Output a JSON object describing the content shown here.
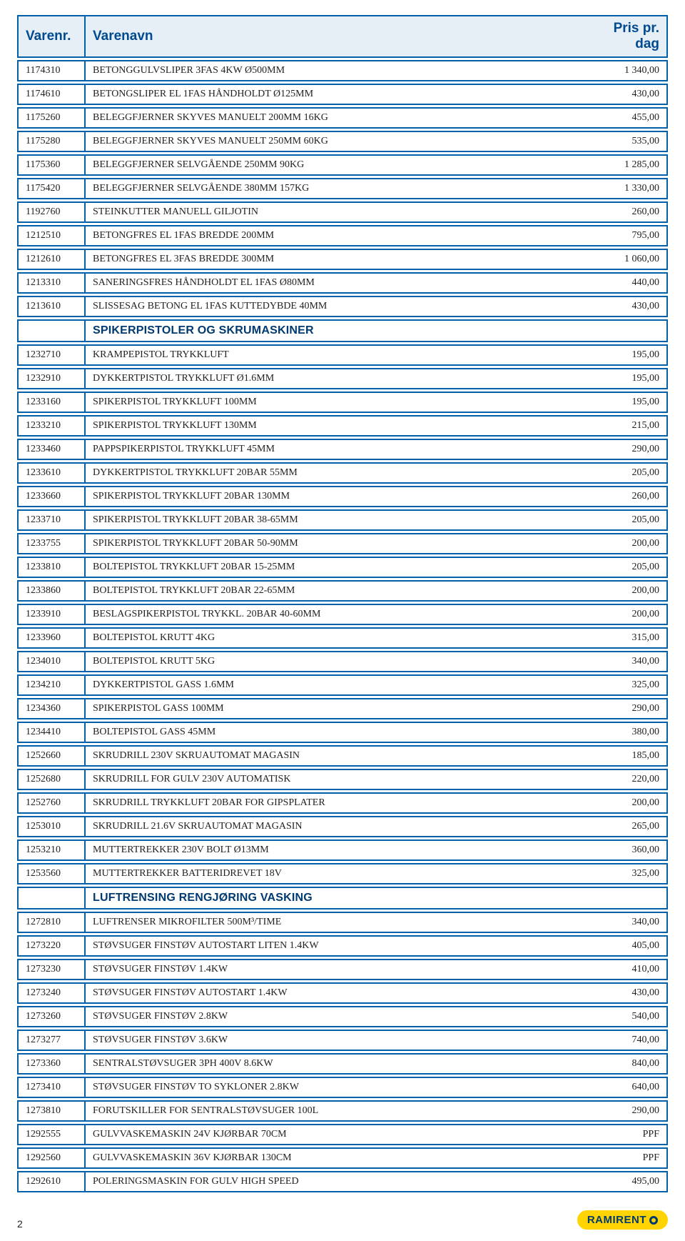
{
  "header": {
    "col_varenr": "Varenr.",
    "col_varenavn": "Varenavn",
    "col_pris": "Pris pr. dag"
  },
  "rows": [
    {
      "nr": "1174310",
      "navn": "BETONGGULVSLIPER 3FAS 4KW Ø500MM",
      "pris": "1 340,00"
    },
    {
      "nr": "1174610",
      "navn": "BETONGSLIPER EL 1FAS HÅNDHOLDT Ø125MM",
      "pris": "430,00"
    },
    {
      "nr": "1175260",
      "navn": "BELEGGFJERNER SKYVES MANUELT 200MM 16KG",
      "pris": "455,00"
    },
    {
      "nr": "1175280",
      "navn": "BELEGGFJERNER SKYVES MANUELT 250MM 60KG",
      "pris": "535,00"
    },
    {
      "nr": "1175360",
      "navn": "BELEGGFJERNER SELVGÅENDE 250MM 90KG",
      "pris": "1 285,00"
    },
    {
      "nr": "1175420",
      "navn": "BELEGGFJERNER SELVGÅENDE 380MM 157KG",
      "pris": "1 330,00"
    },
    {
      "nr": "1192760",
      "navn": "STEINKUTTER MANUELL GILJOTIN",
      "pris": "260,00"
    },
    {
      "nr": "1212510",
      "navn": "BETONGFRES EL 1FAS BREDDE 200MM",
      "pris": "795,00"
    },
    {
      "nr": "1212610",
      "navn": "BETONGFRES EL 3FAS BREDDE 300MM",
      "pris": "1 060,00"
    },
    {
      "nr": "1213310",
      "navn": "SANERINGSFRES HÅNDHOLDT EL 1FAS Ø80MM",
      "pris": "440,00"
    },
    {
      "nr": "1213610",
      "navn": "SLISSESAG BETONG EL 1FAS KUTTEDYBDE 40MM",
      "pris": "430,00"
    },
    {
      "section": "SPIKERPISTOLER OG SKRUMASKINER"
    },
    {
      "nr": "1232710",
      "navn": "KRAMPEPISTOL TRYKKLUFT",
      "pris": "195,00"
    },
    {
      "nr": "1232910",
      "navn": "DYKKERTPISTOL TRYKKLUFT Ø1.6MM",
      "pris": "195,00"
    },
    {
      "nr": "1233160",
      "navn": "SPIKERPISTOL TRYKKLUFT 100MM",
      "pris": "195,00"
    },
    {
      "nr": "1233210",
      "navn": "SPIKERPISTOL TRYKKLUFT 130MM",
      "pris": "215,00"
    },
    {
      "nr": "1233460",
      "navn": "PAPPSPIKERPISTOL TRYKKLUFT 45MM",
      "pris": "290,00"
    },
    {
      "nr": "1233610",
      "navn": "DYKKERTPISTOL TRYKKLUFT 20BAR 55MM",
      "pris": "205,00"
    },
    {
      "nr": "1233660",
      "navn": "SPIKERPISTOL TRYKKLUFT 20BAR 130MM",
      "pris": "260,00"
    },
    {
      "nr": "1233710",
      "navn": "SPIKERPISTOL TRYKKLUFT 20BAR 38-65MM",
      "pris": "205,00"
    },
    {
      "nr": "1233755",
      "navn": "SPIKERPISTOL TRYKKLUFT 20BAR 50-90MM",
      "pris": "200,00"
    },
    {
      "nr": "1233810",
      "navn": "BOLTEPISTOL TRYKKLUFT 20BAR 15-25MM",
      "pris": "205,00"
    },
    {
      "nr": "1233860",
      "navn": "BOLTEPISTOL TRYKKLUFT 20BAR 22-65MM",
      "pris": "200,00"
    },
    {
      "nr": "1233910",
      "navn": "BESLAGSPIKERPISTOL TRYKKL. 20BAR 40-60MM",
      "pris": "200,00"
    },
    {
      "nr": "1233960",
      "navn": "BOLTEPISTOL KRUTT 4KG",
      "pris": "315,00"
    },
    {
      "nr": "1234010",
      "navn": "BOLTEPISTOL KRUTT 5KG",
      "pris": "340,00"
    },
    {
      "nr": "1234210",
      "navn": "DYKKERTPISTOL GASS 1.6MM",
      "pris": "325,00"
    },
    {
      "nr": "1234360",
      "navn": "SPIKERPISTOL GASS 100MM",
      "pris": "290,00"
    },
    {
      "nr": "1234410",
      "navn": "BOLTEPISTOL GASS 45MM",
      "pris": "380,00"
    },
    {
      "nr": "1252660",
      "navn": "SKRUDRILL 230V SKRUAUTOMAT MAGASIN",
      "pris": "185,00"
    },
    {
      "nr": "1252680",
      "navn": "SKRUDRILL FOR GULV 230V AUTOMATISK",
      "pris": "220,00"
    },
    {
      "nr": "1252760",
      "navn": "SKRUDRILL TRYKKLUFT 20BAR FOR GIPSPLATER",
      "pris": "200,00"
    },
    {
      "nr": "1253010",
      "navn": "SKRUDRILL 21.6V SKRUAUTOMAT MAGASIN",
      "pris": "265,00"
    },
    {
      "nr": "1253210",
      "navn": "MUTTERTREKKER 230V BOLT Ø13MM",
      "pris": "360,00"
    },
    {
      "nr": "1253560",
      "navn": "MUTTERTREKKER BATTERIDREVET 18V",
      "pris": "325,00"
    },
    {
      "section": "LUFTRENSING RENGJØRING VASKING"
    },
    {
      "nr": "1272810",
      "navn": "LUFTRENSER MIKROFILTER 500M³/TIME",
      "pris": "340,00"
    },
    {
      "nr": "1273220",
      "navn": "STØVSUGER FINSTØV AUTOSTART LITEN 1.4KW",
      "pris": "405,00"
    },
    {
      "nr": "1273230",
      "navn": "STØVSUGER FINSTØV 1.4KW",
      "pris": "410,00"
    },
    {
      "nr": "1273240",
      "navn": "STØVSUGER FINSTØV AUTOSTART 1.4KW",
      "pris": "430,00"
    },
    {
      "nr": "1273260",
      "navn": "STØVSUGER FINSTØV 2.8KW",
      "pris": "540,00"
    },
    {
      "nr": "1273277",
      "navn": "STØVSUGER FINSTØV 3.6KW",
      "pris": "740,00"
    },
    {
      "nr": "1273360",
      "navn": "SENTRALSTØVSUGER 3PH 400V 8.6KW",
      "pris": "840,00"
    },
    {
      "nr": "1273410",
      "navn": "STØVSUGER FINSTØV TO SYKLONER 2.8KW",
      "pris": "640,00"
    },
    {
      "nr": "1273810",
      "navn": "FORUTSKILLER FOR SENTRALSTØVSUGER 100L",
      "pris": "290,00"
    },
    {
      "nr": "1292555",
      "navn": "GULVVASKEMASKIN 24V KJØRBAR 70CM",
      "pris": "PPF"
    },
    {
      "nr": "1292560",
      "navn": "GULVVASKEMASKIN 36V KJØRBAR 130CM",
      "pris": "PPF"
    },
    {
      "nr": "1292610",
      "navn": "POLERINGSMASKIN FOR GULV HIGH SPEED",
      "pris": "495,00"
    }
  ],
  "footer": {
    "page": "2",
    "logo_text": "RAMIRENT"
  },
  "colors": {
    "border": "#0060a9",
    "header_bg": "#e6eef6",
    "header_text": "#004a8f",
    "logo_bg": "#ffd400",
    "logo_text": "#003a70"
  },
  "typography": {
    "row_fontsize_pt": 10,
    "header_fontsize_pt": 14,
    "section_fontsize_pt": 12
  }
}
